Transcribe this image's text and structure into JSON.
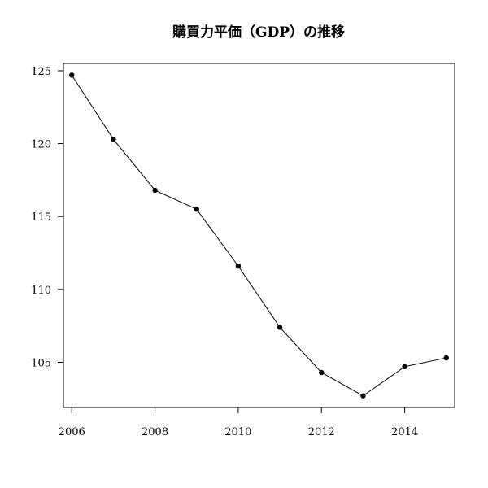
{
  "chart_data": {
    "type": "line",
    "title": "購買力平価（GDP）の推移",
    "xlabel": "",
    "ylabel": "",
    "x": [
      2006,
      2007,
      2008,
      2009,
      2010,
      2011,
      2012,
      2013,
      2014,
      2015
    ],
    "series": [
      {
        "values": [
          124.7,
          120.3,
          116.8,
          115.5,
          111.6,
          107.4,
          104.3,
          102.7,
          104.7,
          105.3
        ]
      }
    ],
    "xlim": [
      2005.8,
      2015.2
    ],
    "ylim": [
      101.9,
      125.5
    ],
    "xticks": [
      2006,
      2008,
      2010,
      2012,
      2014
    ],
    "yticks": [
      105,
      110,
      115,
      120,
      125
    ],
    "grid": false,
    "legend": "none",
    "markers": true,
    "colors": {
      "line": "#000000",
      "marker": "#000000"
    }
  }
}
